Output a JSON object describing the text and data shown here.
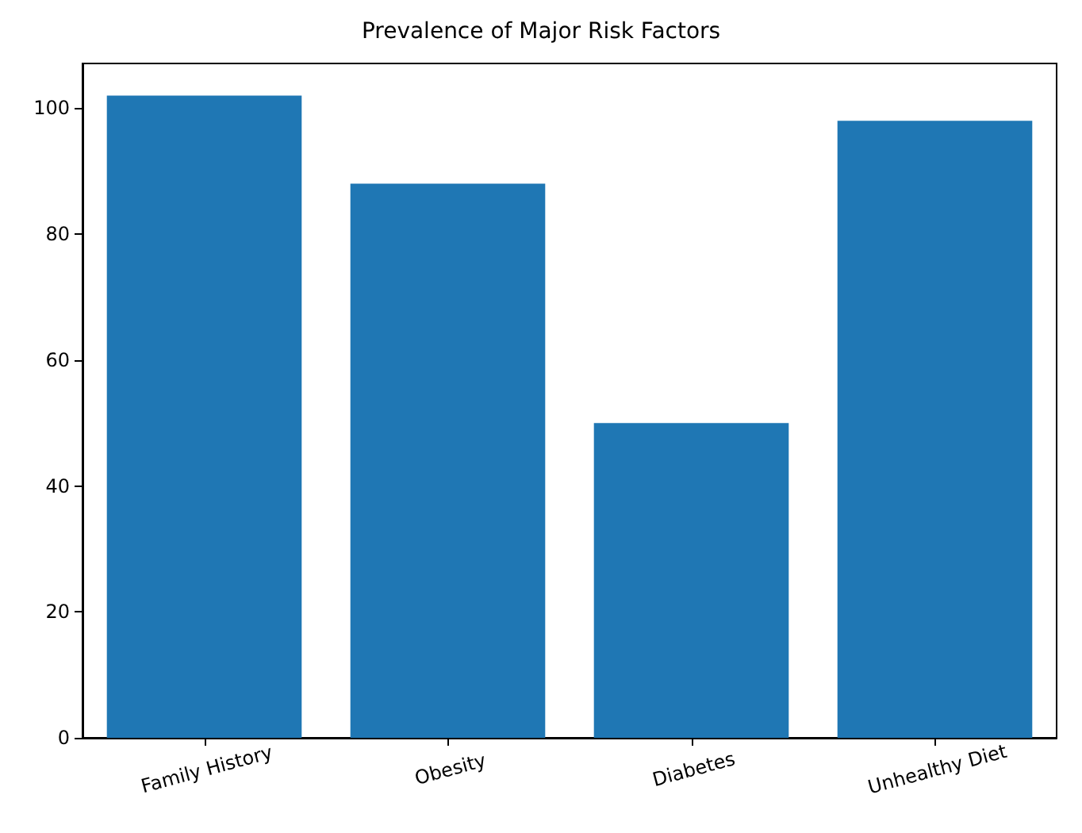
{
  "chart_data": {
    "type": "bar",
    "title": "Prevalence of Major Risk Factors",
    "categories": [
      "Family History",
      "Obesity",
      "Diabetes",
      "Unhealthy Diet"
    ],
    "values": [
      102,
      88,
      50,
      98
    ],
    "color": "#1f77b4",
    "ylim": [
      0,
      107.1
    ],
    "yticks": [
      0,
      20,
      40,
      60,
      80,
      100
    ],
    "grid": false
  }
}
